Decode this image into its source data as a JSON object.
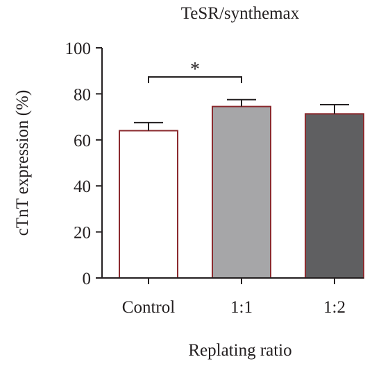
{
  "chart_data": {
    "type": "bar",
    "title": "TeSR/synthemax",
    "xlabel": "Replating ratio",
    "ylabel": "cTnT expression (%)",
    "ylim": [
      0,
      100
    ],
    "yticks": [
      0,
      20,
      40,
      60,
      80,
      100
    ],
    "categories": [
      "Control",
      "1:1",
      "1:2"
    ],
    "values": [
      64,
      74.5,
      71.3
    ],
    "errors": [
      3.5,
      3,
      4
    ],
    "bar_colors": [
      "#ffffff",
      "#a6a6a8",
      "#5f5f61"
    ],
    "bar_edge_color": "#8b2a2e",
    "grid": false,
    "significance": [
      {
        "from": 0,
        "to": 1,
        "label": "*"
      }
    ]
  }
}
